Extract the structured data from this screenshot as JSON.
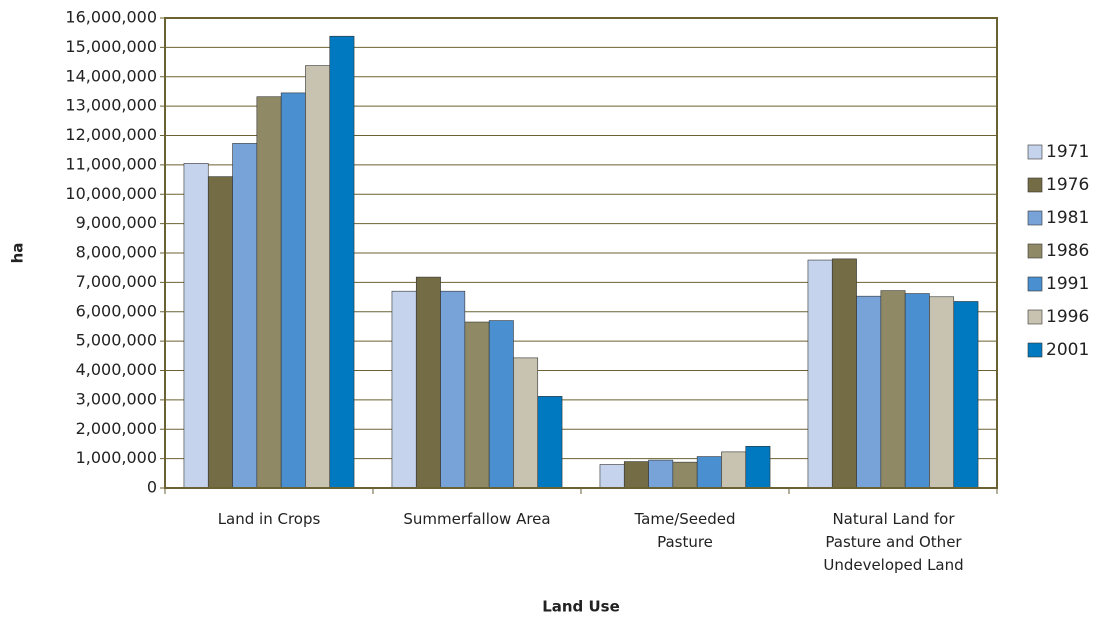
{
  "chart_data": {
    "type": "bar",
    "x_label": "Land Use",
    "y_label": "ha",
    "categories": [
      "Land in Crops",
      "Summerfallow Area",
      "Tame/Seeded Pasture",
      "Natural Land for Pasture and Other Undeveloped Land"
    ],
    "series": [
      {
        "name": "1971",
        "color": "#c5d3ec",
        "values": [
          11050000,
          6700000,
          800000,
          7760000
        ]
      },
      {
        "name": "1976",
        "color": "#736c45",
        "values": [
          10600000,
          7180000,
          900000,
          7800000
        ]
      },
      {
        "name": "1981",
        "color": "#78a3d8",
        "values": [
          11730000,
          6700000,
          950000,
          6530000
        ]
      },
      {
        "name": "1986",
        "color": "#8f8a65",
        "values": [
          13320000,
          5650000,
          880000,
          6720000
        ]
      },
      {
        "name": "1991",
        "color": "#4a8fcf",
        "values": [
          13450000,
          5700000,
          1070000,
          6620000
        ]
      },
      {
        "name": "1996",
        "color": "#c8c2b0",
        "values": [
          14380000,
          4430000,
          1230000,
          6510000
        ]
      },
      {
        "name": "2001",
        "color": "#0079c1",
        "values": [
          15380000,
          3120000,
          1420000,
          6350000
        ]
      }
    ],
    "ylim": [
      0,
      16000000
    ],
    "yticks": [
      0,
      {
        "value": 1000000,
        "label": "1,000,000"
      },
      {
        "value": 2000000,
        "label": "2,000,000"
      },
      {
        "value": 3000000,
        "label": "3,000,000"
      },
      {
        "value": 4000000,
        "label": "4,000,000"
      },
      {
        "value": 5000000,
        "label": "5,000,000"
      },
      {
        "value": 6000000,
        "label": "6,000,000"
      },
      {
        "value": 7000000,
        "label": "7,000,000"
      },
      {
        "value": 8000000,
        "label": "8,000,000"
      },
      {
        "value": 9000000,
        "label": "9,000,000"
      },
      {
        "value": 10000000,
        "label": "10,000,000"
      },
      {
        "value": 11000000,
        "label": "11,000,000"
      },
      {
        "value": 12000000,
        "label": "12,000,000"
      },
      {
        "value": 13000000,
        "label": "13,000,000"
      },
      {
        "value": 14000000,
        "label": "14,000,000"
      },
      {
        "value": 15000000,
        "label": "15,000,000"
      },
      {
        "value": 16000000,
        "label": "16,000,000"
      }
    ],
    "grid": true,
    "legend": "right"
  }
}
